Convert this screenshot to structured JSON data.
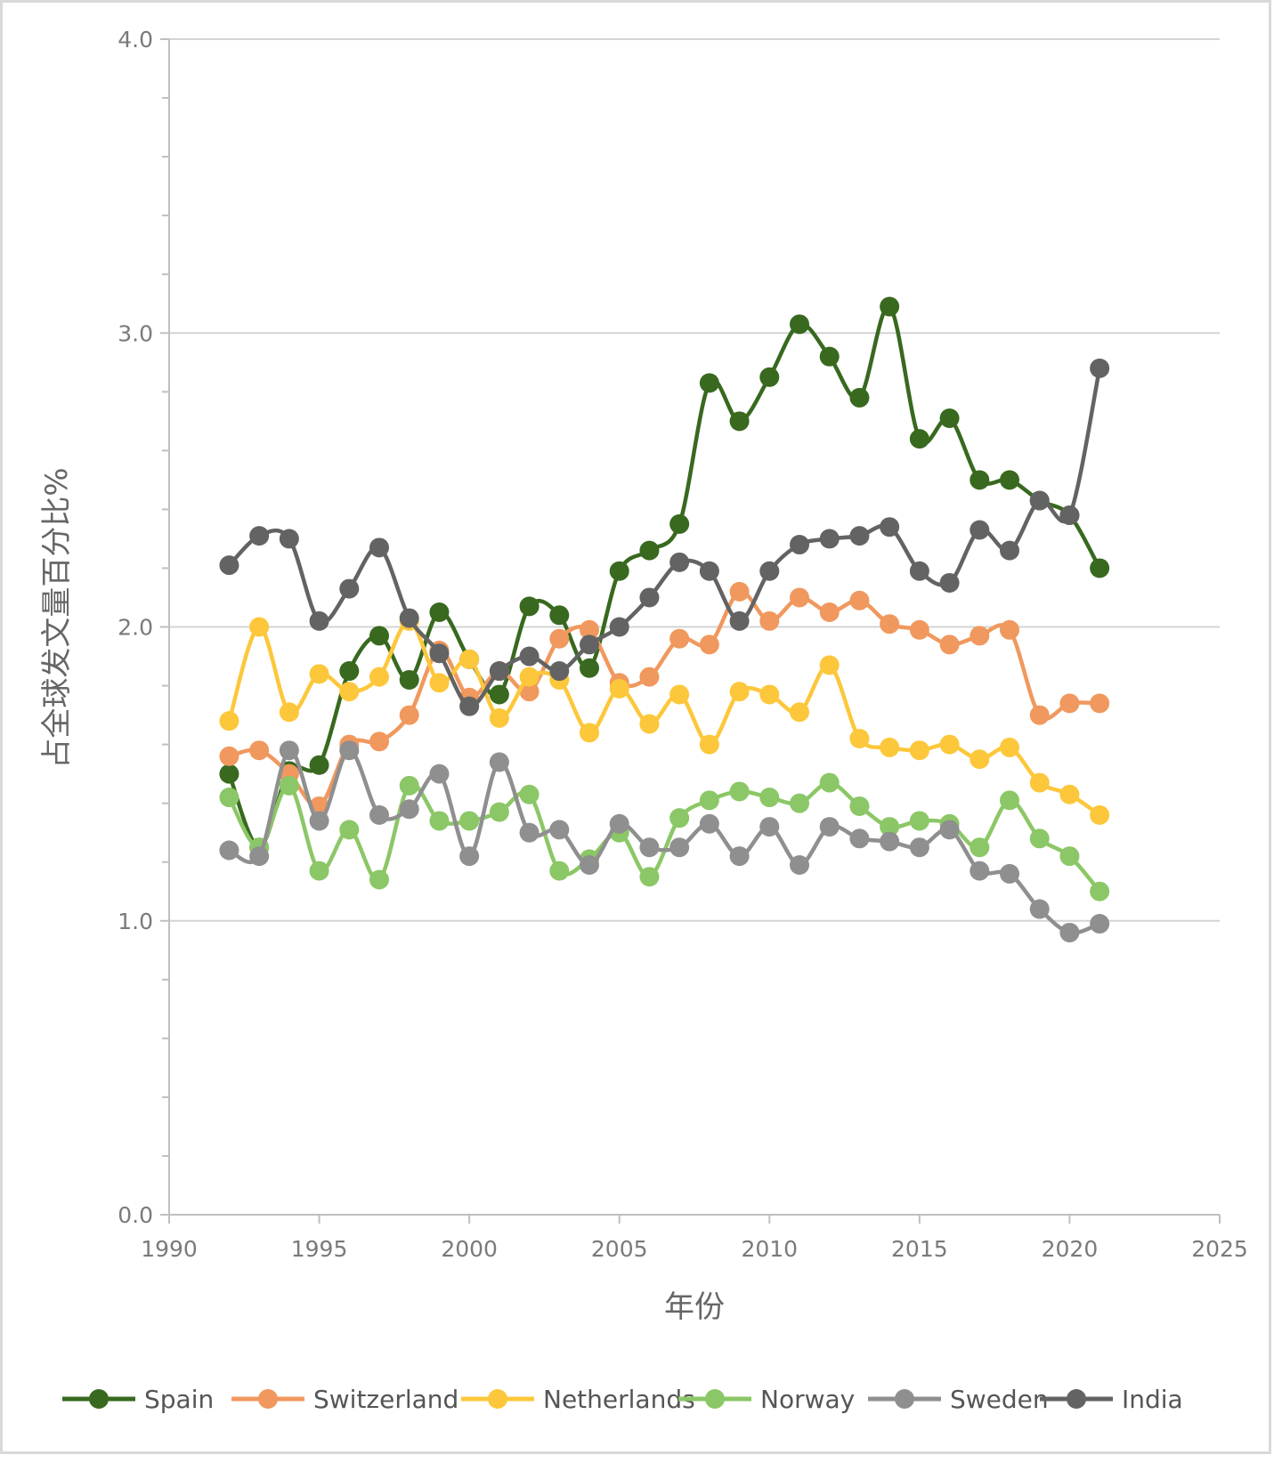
{
  "chart_data": {
    "type": "line",
    "title": "",
    "xlabel": "年份",
    "ylabel": "占全球发文量百分比%",
    "xlim": [
      1990,
      2025
    ],
    "ylim": [
      0.0,
      4.0
    ],
    "x_ticks": [
      "1990",
      "1995",
      "2000",
      "2005",
      "2010",
      "2015",
      "2020",
      "2025"
    ],
    "y_ticks": [
      "0.0",
      "1.0",
      "2.0",
      "3.0",
      "4.0"
    ],
    "grid": "horizontal major",
    "legend_position": "bottom",
    "x": [
      1992,
      1993,
      1994,
      1995,
      1996,
      1997,
      1998,
      1999,
      2000,
      2001,
      2002,
      2003,
      2004,
      2005,
      2006,
      2007,
      2008,
      2009,
      2010,
      2011,
      2012,
      2013,
      2014,
      2015,
      2016,
      2017,
      2018,
      2019,
      2020,
      2021
    ],
    "series": [
      {
        "name": "Spain",
        "color": "#38691f",
        "values": [
          1.5,
          1.25,
          1.51,
          1.53,
          1.85,
          1.97,
          1.82,
          2.05,
          1.89,
          1.77,
          2.07,
          2.04,
          1.86,
          2.19,
          2.26,
          2.35,
          2.83,
          2.7,
          2.85,
          3.03,
          2.92,
          2.78,
          3.09,
          2.64,
          2.71,
          2.5,
          2.5,
          2.43,
          2.38,
          2.2
        ]
      },
      {
        "name": "Switzerland",
        "color": "#f0985e",
        "values": [
          1.56,
          1.58,
          1.5,
          1.39,
          1.6,
          1.61,
          1.7,
          1.92,
          1.76,
          1.85,
          1.78,
          1.96,
          1.99,
          1.81,
          1.83,
          1.96,
          1.94,
          2.12,
          2.02,
          2.1,
          2.05,
          2.09,
          2.01,
          1.99,
          1.94,
          1.97,
          1.99,
          1.7,
          1.74,
          1.74
        ]
      },
      {
        "name": "Netherlands",
        "color": "#fcc73a",
        "values": [
          1.68,
          2.0,
          1.71,
          1.84,
          1.78,
          1.83,
          2.02,
          1.81,
          1.89,
          1.69,
          1.83,
          1.82,
          1.64,
          1.79,
          1.67,
          1.77,
          1.6,
          1.78,
          1.77,
          1.71,
          1.87,
          1.62,
          1.59,
          1.58,
          1.6,
          1.55,
          1.59,
          1.47,
          1.43,
          1.36
        ]
      },
      {
        "name": "Norway",
        "color": "#8bc766",
        "values": [
          1.42,
          1.25,
          1.46,
          1.17,
          1.31,
          1.14,
          1.46,
          1.34,
          1.34,
          1.37,
          1.43,
          1.17,
          1.21,
          1.3,
          1.15,
          1.35,
          1.41,
          1.44,
          1.42,
          1.4,
          1.47,
          1.39,
          1.32,
          1.34,
          1.33,
          1.25,
          1.41,
          1.28,
          1.22,
          1.1
        ]
      },
      {
        "name": "Sweden",
        "color": "#8f8f8f",
        "values": [
          1.24,
          1.22,
          1.58,
          1.34,
          1.58,
          1.36,
          1.38,
          1.5,
          1.22,
          1.54,
          1.3,
          1.31,
          1.19,
          1.33,
          1.25,
          1.25,
          1.33,
          1.22,
          1.32,
          1.19,
          1.32,
          1.28,
          1.27,
          1.25,
          1.31,
          1.17,
          1.16,
          1.04,
          0.96,
          0.99
        ]
      },
      {
        "name": "India",
        "color": "#636363",
        "values": [
          2.21,
          2.31,
          2.3,
          2.02,
          2.13,
          2.27,
          2.03,
          1.91,
          1.73,
          1.85,
          1.9,
          1.85,
          1.94,
          2.0,
          2.1,
          2.22,
          2.19,
          2.02,
          2.19,
          2.28,
          2.3,
          2.31,
          2.34,
          2.19,
          2.15,
          2.33,
          2.26,
          2.43,
          2.38,
          2.88
        ]
      }
    ]
  }
}
